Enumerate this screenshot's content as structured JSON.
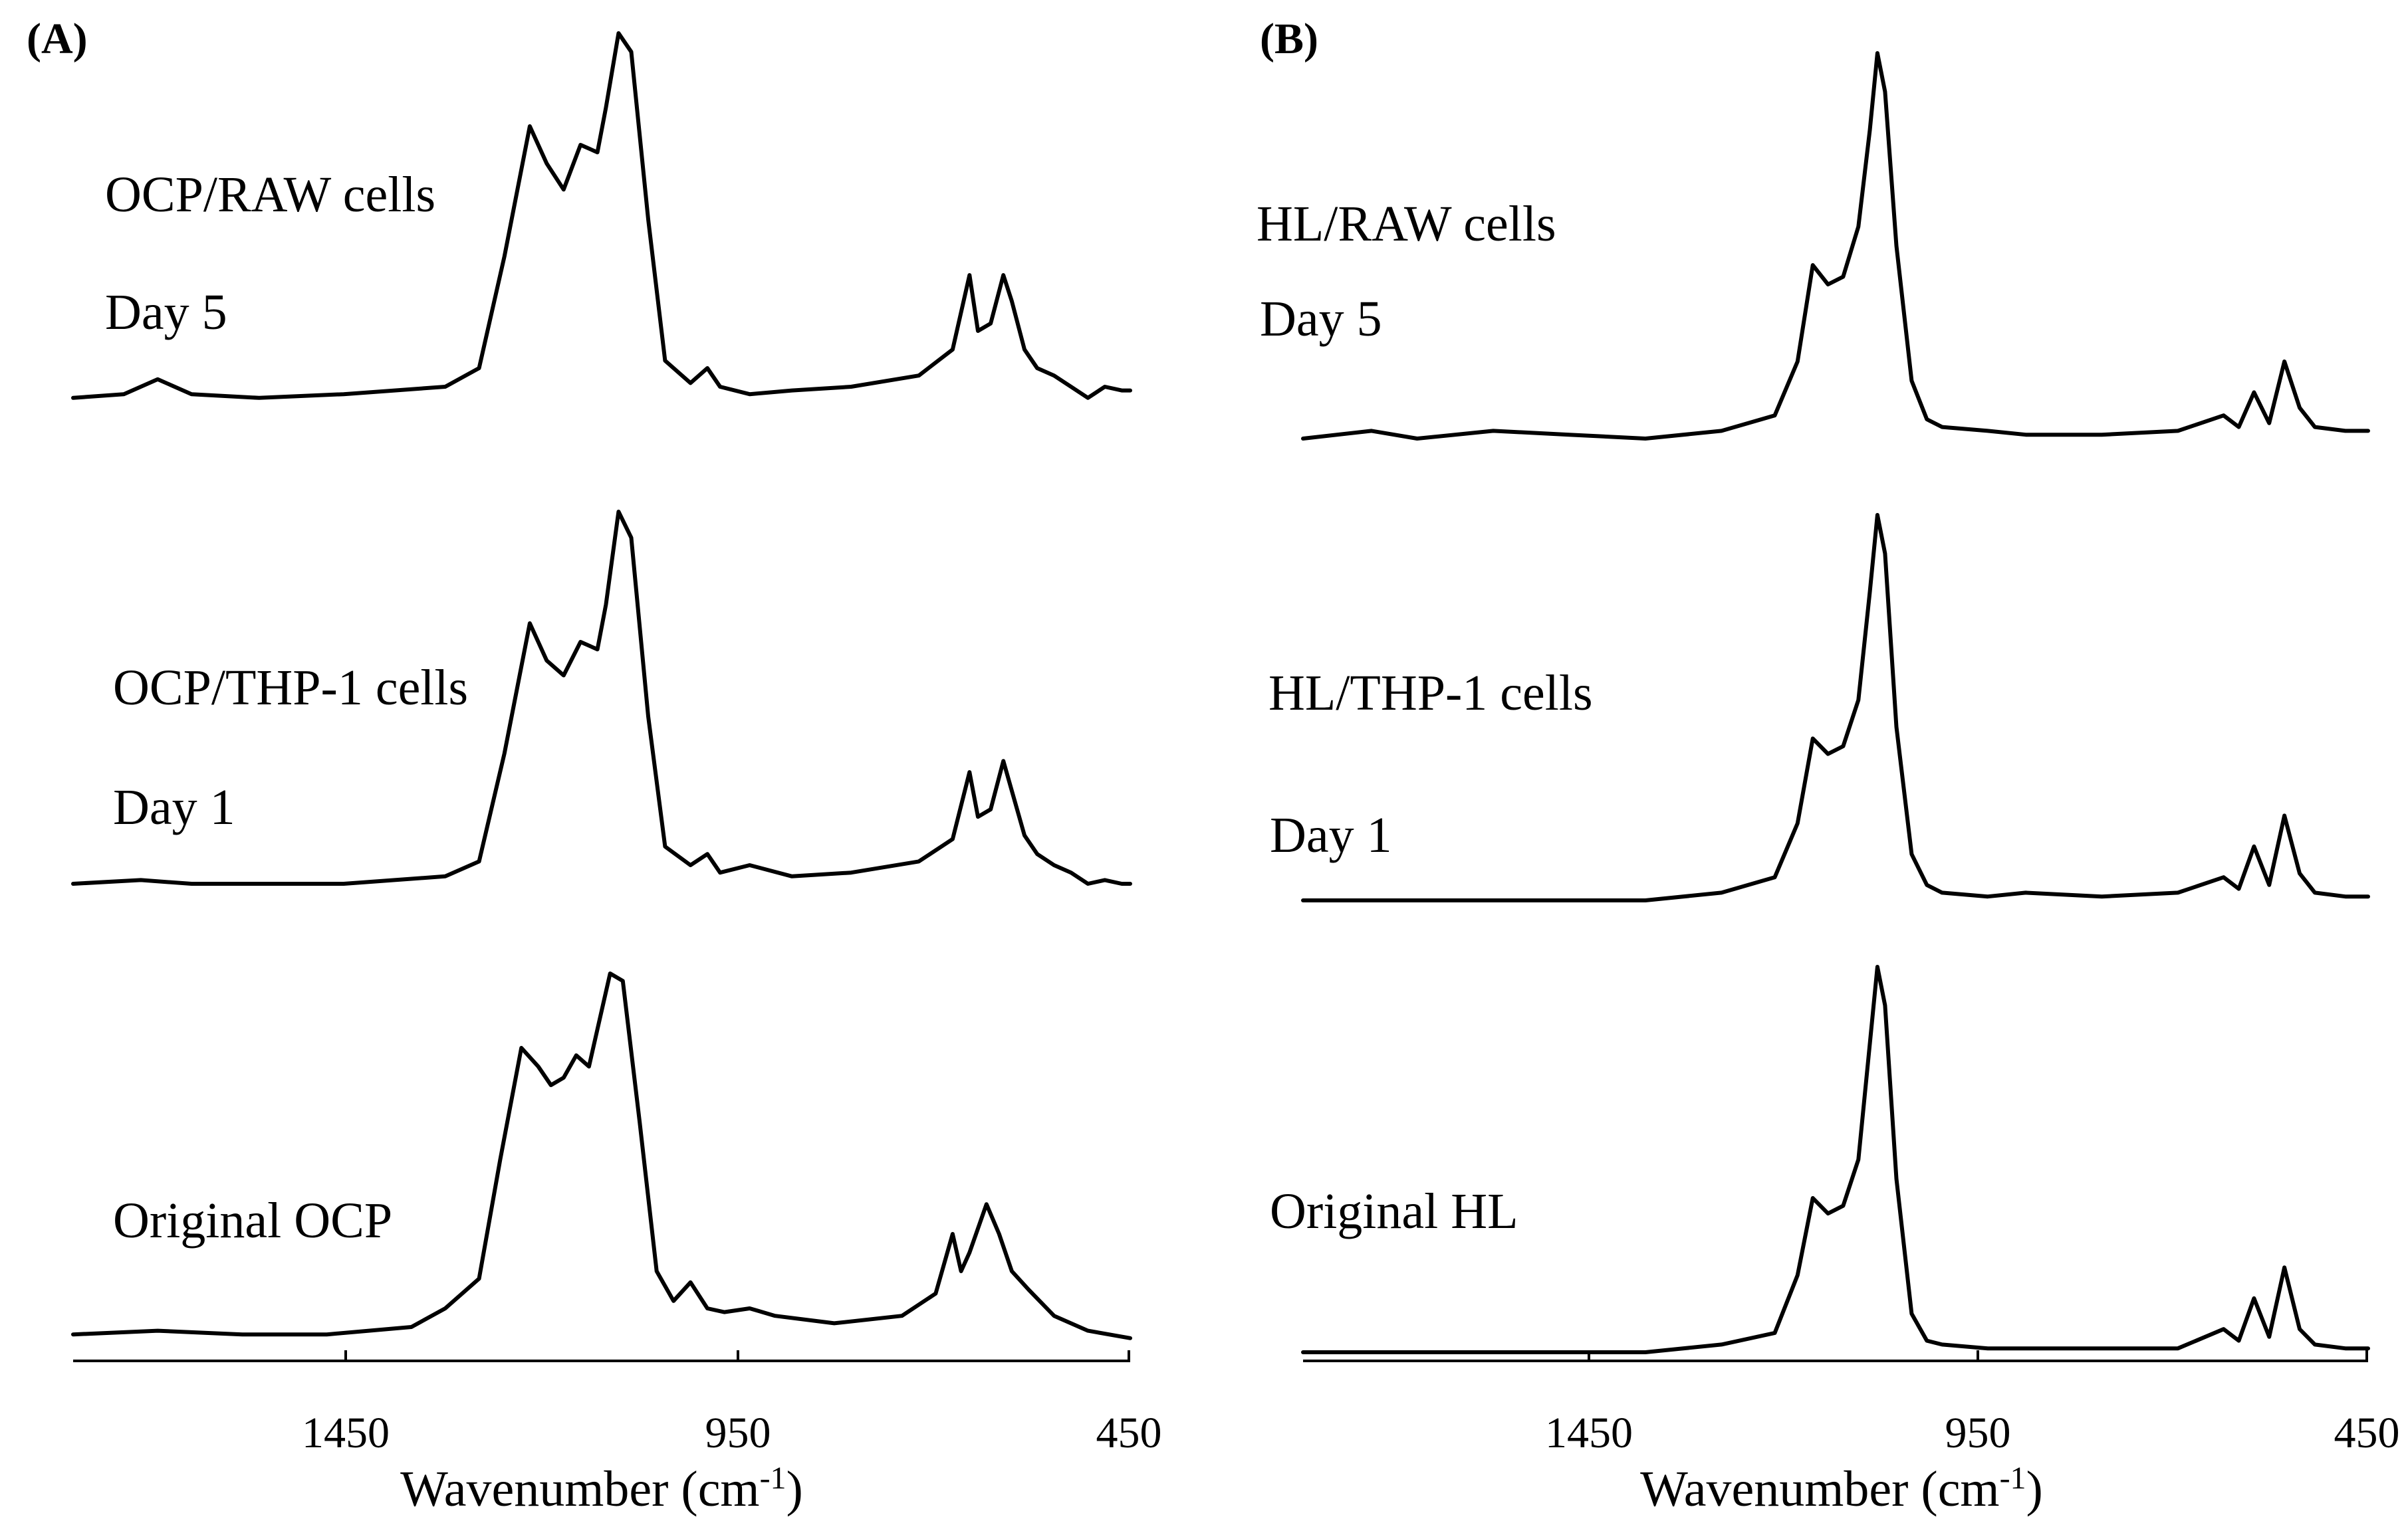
{
  "chart_data": [
    {
      "type": "line",
      "panel": "(A)",
      "xlabel": "Wavenumber (cm-1)",
      "xlim": [
        1700,
        450
      ],
      "x_reversed": true,
      "y_axis_shown": false,
      "xticks": [
        1450,
        950,
        450
      ],
      "xtick_labels": [
        "1450",
        "950",
        "450"
      ],
      "series": [
        {
          "labels": [
            "OCP/RAW cells",
            "Day 5"
          ],
          "points": [
            [
              1700,
              0.02
            ],
            [
              1640,
              0.03
            ],
            [
              1600,
              0.07
            ],
            [
              1560,
              0.03
            ],
            [
              1480,
              0.02
            ],
            [
              1380,
              0.03
            ],
            [
              1260,
              0.05
            ],
            [
              1220,
              0.1
            ],
            [
              1190,
              0.4
            ],
            [
              1160,
              0.75
            ],
            [
              1140,
              0.65
            ],
            [
              1120,
              0.58
            ],
            [
              1100,
              0.7
            ],
            [
              1080,
              0.68
            ],
            [
              1070,
              0.8
            ],
            [
              1055,
              1.0
            ],
            [
              1040,
              0.95
            ],
            [
              1020,
              0.5
            ],
            [
              1000,
              0.12
            ],
            [
              970,
              0.06
            ],
            [
              950,
              0.1
            ],
            [
              935,
              0.05
            ],
            [
              900,
              0.03
            ],
            [
              850,
              0.04
            ],
            [
              780,
              0.05
            ],
            [
              700,
              0.08
            ],
            [
              660,
              0.15
            ],
            [
              640,
              0.35
            ],
            [
              630,
              0.2
            ],
            [
              615,
              0.22
            ],
            [
              600,
              0.35
            ],
            [
              590,
              0.28
            ],
            [
              575,
              0.15
            ],
            [
              560,
              0.1
            ],
            [
              540,
              0.08
            ],
            [
              520,
              0.05
            ],
            [
              500,
              0.02
            ],
            [
              480,
              0.05
            ],
            [
              460,
              0.04
            ],
            [
              450,
              0.04
            ]
          ]
        },
        {
          "labels": [
            "OCP/THP-1 cells",
            "Day 1"
          ],
          "points": [
            [
              1700,
              0.0
            ],
            [
              1620,
              0.01
            ],
            [
              1560,
              0.0
            ],
            [
              1380,
              0.0
            ],
            [
              1260,
              0.02
            ],
            [
              1220,
              0.06
            ],
            [
              1190,
              0.35
            ],
            [
              1160,
              0.7
            ],
            [
              1140,
              0.6
            ],
            [
              1120,
              0.56
            ],
            [
              1100,
              0.65
            ],
            [
              1080,
              0.63
            ],
            [
              1070,
              0.75
            ],
            [
              1055,
              1.0
            ],
            [
              1040,
              0.93
            ],
            [
              1020,
              0.45
            ],
            [
              1000,
              0.1
            ],
            [
              970,
              0.05
            ],
            [
              950,
              0.08
            ],
            [
              935,
              0.03
            ],
            [
              900,
              0.05
            ],
            [
              850,
              0.02
            ],
            [
              780,
              0.03
            ],
            [
              700,
              0.06
            ],
            [
              660,
              0.12
            ],
            [
              640,
              0.3
            ],
            [
              630,
              0.18
            ],
            [
              615,
              0.2
            ],
            [
              600,
              0.33
            ],
            [
              590,
              0.25
            ],
            [
              575,
              0.13
            ],
            [
              560,
              0.08
            ],
            [
              540,
              0.05
            ],
            [
              520,
              0.03
            ],
            [
              500,
              0.0
            ],
            [
              480,
              0.01
            ],
            [
              460,
              0.0
            ],
            [
              450,
              0.0
            ]
          ]
        },
        {
          "labels": [
            "Original OCP"
          ],
          "points": [
            [
              1700,
              0.03
            ],
            [
              1600,
              0.04
            ],
            [
              1500,
              0.03
            ],
            [
              1400,
              0.03
            ],
            [
              1300,
              0.05
            ],
            [
              1260,
              0.1
            ],
            [
              1220,
              0.18
            ],
            [
              1195,
              0.5
            ],
            [
              1170,
              0.8
            ],
            [
              1150,
              0.75
            ],
            [
              1135,
              0.7
            ],
            [
              1120,
              0.72
            ],
            [
              1105,
              0.78
            ],
            [
              1090,
              0.75
            ],
            [
              1080,
              0.85
            ],
            [
              1065,
              1.0
            ],
            [
              1050,
              0.98
            ],
            [
              1030,
              0.6
            ],
            [
              1010,
              0.2
            ],
            [
              990,
              0.12
            ],
            [
              970,
              0.17
            ],
            [
              950,
              0.1
            ],
            [
              930,
              0.09
            ],
            [
              900,
              0.1
            ],
            [
              870,
              0.08
            ],
            [
              800,
              0.06
            ],
            [
              720,
              0.08
            ],
            [
              680,
              0.14
            ],
            [
              660,
              0.3
            ],
            [
              650,
              0.2
            ],
            [
              640,
              0.25
            ],
            [
              620,
              0.38
            ],
            [
              605,
              0.3
            ],
            [
              590,
              0.2
            ],
            [
              570,
              0.15
            ],
            [
              540,
              0.08
            ],
            [
              500,
              0.04
            ],
            [
              450,
              0.02
            ]
          ]
        }
      ]
    },
    {
      "type": "line",
      "panel": "(B)",
      "xlabel": "Wavenumber (cm-1)",
      "xlim": [
        1850,
        450
      ],
      "x_reversed": true,
      "y_axis_shown": false,
      "xticks": [
        1450,
        950,
        450
      ],
      "xtick_labels": [
        "1450",
        "950",
        "450"
      ],
      "series": [
        {
          "labels": [
            "HL/RAW cells",
            "Day 5"
          ],
          "points": [
            [
              1850,
              0.0
            ],
            [
              1760,
              0.02
            ],
            [
              1700,
              0.0
            ],
            [
              1600,
              0.02
            ],
            [
              1500,
              0.01
            ],
            [
              1400,
              0.0
            ],
            [
              1300,
              0.02
            ],
            [
              1230,
              0.06
            ],
            [
              1200,
              0.2
            ],
            [
              1180,
              0.45
            ],
            [
              1160,
              0.4
            ],
            [
              1140,
              0.42
            ],
            [
              1120,
              0.55
            ],
            [
              1105,
              0.8
            ],
            [
              1095,
              1.0
            ],
            [
              1085,
              0.9
            ],
            [
              1070,
              0.5
            ],
            [
              1050,
              0.15
            ],
            [
              1030,
              0.05
            ],
            [
              1010,
              0.03
            ],
            [
              950,
              0.02
            ],
            [
              900,
              0.01
            ],
            [
              800,
              0.01
            ],
            [
              700,
              0.02
            ],
            [
              640,
              0.06
            ],
            [
              620,
              0.03
            ],
            [
              600,
              0.12
            ],
            [
              580,
              0.04
            ],
            [
              560,
              0.2
            ],
            [
              540,
              0.08
            ],
            [
              520,
              0.03
            ],
            [
              480,
              0.02
            ],
            [
              450,
              0.02
            ]
          ]
        },
        {
          "labels": [
            "HL/THP-1 cells",
            "Day 1"
          ],
          "points": [
            [
              1850,
              0.0
            ],
            [
              1700,
              0.0
            ],
            [
              1600,
              0.0
            ],
            [
              1400,
              0.0
            ],
            [
              1300,
              0.02
            ],
            [
              1230,
              0.06
            ],
            [
              1200,
              0.2
            ],
            [
              1180,
              0.42
            ],
            [
              1160,
              0.38
            ],
            [
              1140,
              0.4
            ],
            [
              1120,
              0.52
            ],
            [
              1105,
              0.8
            ],
            [
              1095,
              1.0
            ],
            [
              1085,
              0.9
            ],
            [
              1070,
              0.45
            ],
            [
              1050,
              0.12
            ],
            [
              1030,
              0.04
            ],
            [
              1010,
              0.02
            ],
            [
              950,
              0.01
            ],
            [
              900,
              0.02
            ],
            [
              800,
              0.01
            ],
            [
              700,
              0.02
            ],
            [
              640,
              0.06
            ],
            [
              620,
              0.03
            ],
            [
              600,
              0.14
            ],
            [
              580,
              0.04
            ],
            [
              560,
              0.22
            ],
            [
              540,
              0.07
            ],
            [
              520,
              0.02
            ],
            [
              480,
              0.01
            ],
            [
              450,
              0.01
            ]
          ]
        },
        {
          "labels": [
            "Original HL"
          ],
          "points": [
            [
              1850,
              0.0
            ],
            [
              1700,
              0.0
            ],
            [
              1600,
              0.0
            ],
            [
              1400,
              0.0
            ],
            [
              1300,
              0.02
            ],
            [
              1230,
              0.05
            ],
            [
              1200,
              0.2
            ],
            [
              1180,
              0.4
            ],
            [
              1160,
              0.36
            ],
            [
              1140,
              0.38
            ],
            [
              1120,
              0.5
            ],
            [
              1105,
              0.8
            ],
            [
              1095,
              1.0
            ],
            [
              1085,
              0.9
            ],
            [
              1070,
              0.45
            ],
            [
              1050,
              0.1
            ],
            [
              1030,
              0.03
            ],
            [
              1010,
              0.02
            ],
            [
              950,
              0.01
            ],
            [
              900,
              0.01
            ],
            [
              800,
              0.01
            ],
            [
              700,
              0.01
            ],
            [
              640,
              0.06
            ],
            [
              620,
              0.03
            ],
            [
              600,
              0.14
            ],
            [
              580,
              0.04
            ],
            [
              560,
              0.22
            ],
            [
              540,
              0.06
            ],
            [
              520,
              0.02
            ],
            [
              480,
              0.01
            ],
            [
              450,
              0.01
            ]
          ]
        }
      ]
    }
  ]
}
